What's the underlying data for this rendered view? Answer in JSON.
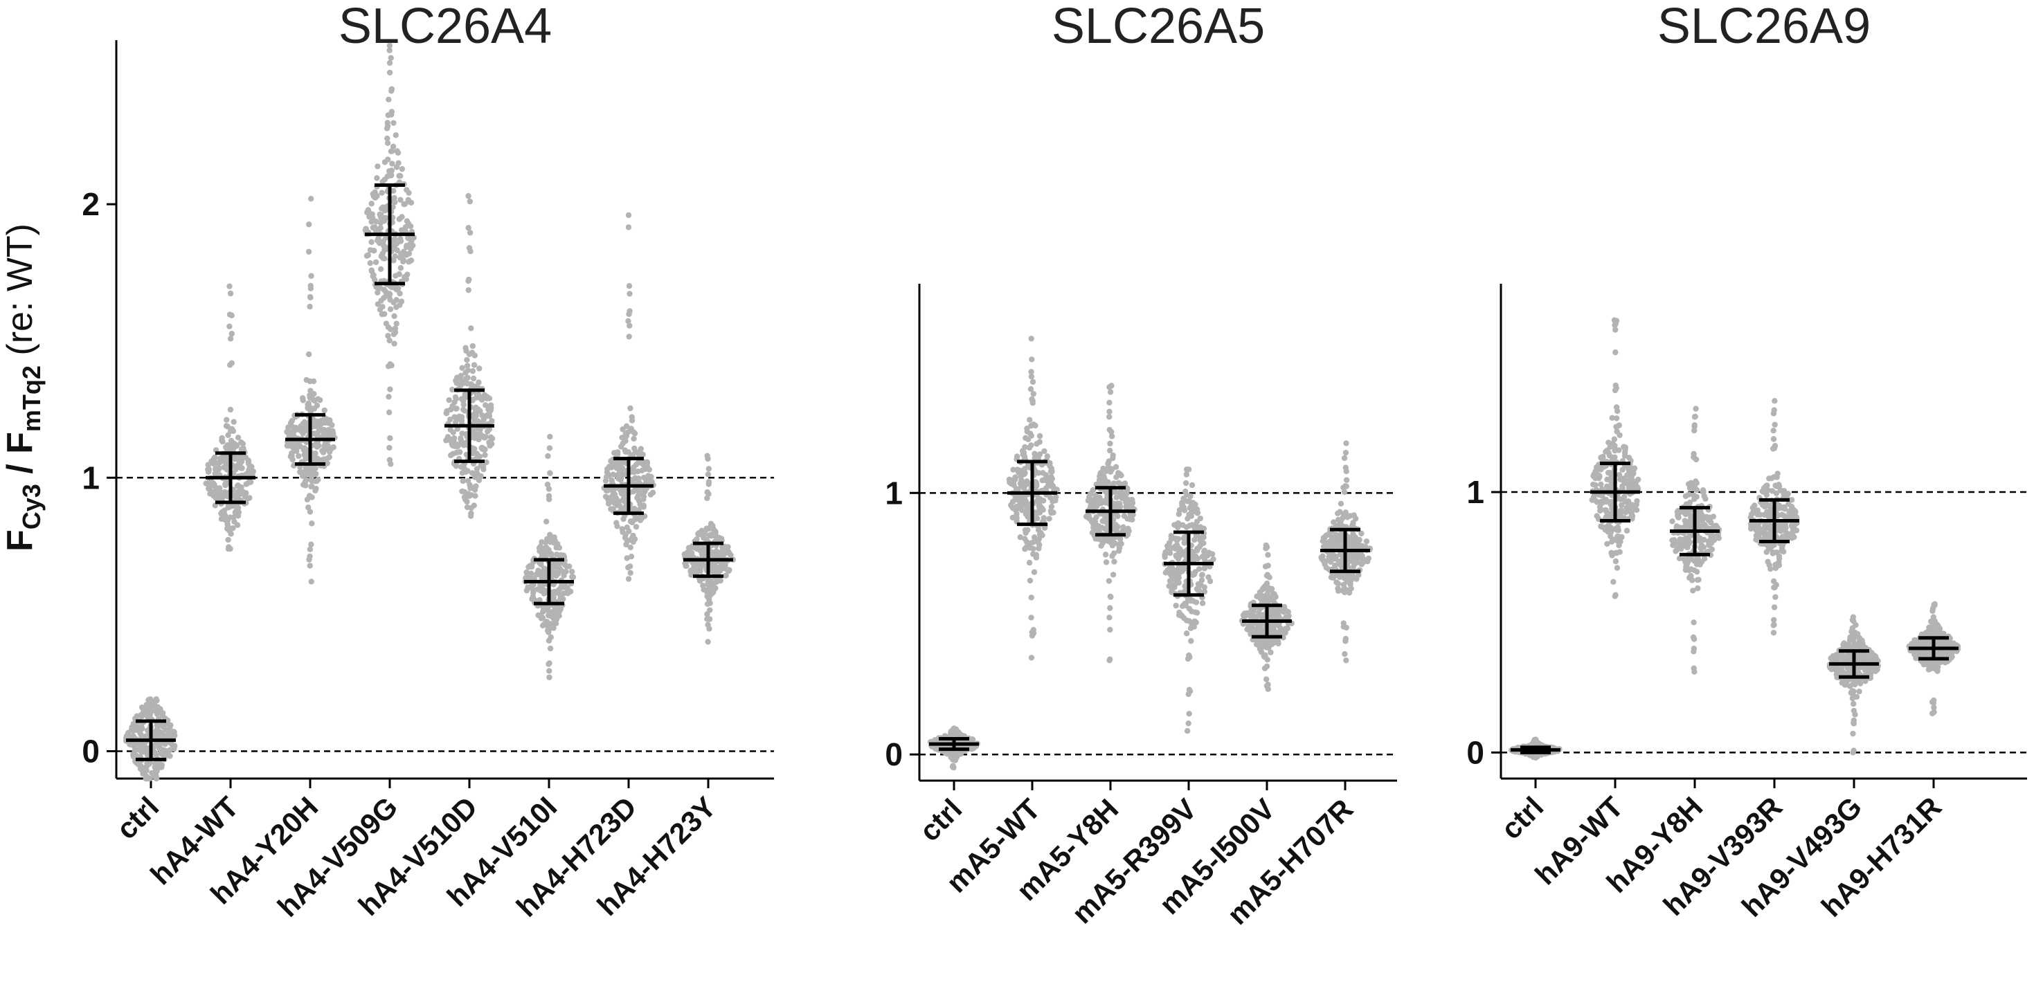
{
  "y_axis_label": {
    "main1": "F",
    "sub1": "Cy3",
    "sep": " / F",
    "sub2": "mTq2",
    "suffix": " (re: WT)"
  },
  "colors": {
    "points": "#b3b3b3",
    "error_bars": "#000000",
    "axes": "#000000",
    "reference_lines": "#000000"
  },
  "chart_data": [
    {
      "type": "scatter",
      "subtype": "beeswarm with mean ± SD",
      "title": "SLC26A4",
      "ylim": [
        -0.1,
        2.6
      ],
      "yticks": [
        0,
        1,
        2
      ],
      "reference_lines": [
        0,
        1
      ],
      "categories": [
        "ctrl",
        "hA4-WT",
        "hA4-Y20H",
        "hA4-V509G",
        "hA4-V510D",
        "hA4-V510I",
        "hA4-H723D",
        "hA4-H723Y"
      ],
      "mean": [
        0.04,
        1.0,
        1.14,
        1.89,
        1.19,
        0.62,
        0.97,
        0.7
      ],
      "sd": [
        0.07,
        0.09,
        0.09,
        0.18,
        0.13,
        0.08,
        0.1,
        0.06
      ],
      "max": [
        0.19,
        1.7,
        2.02,
        2.58,
        2.03,
        1.15,
        1.96,
        1.08
      ],
      "min": [
        -0.1,
        0.74,
        0.62,
        1.05,
        0.86,
        0.27,
        0.63,
        0.4
      ]
    },
    {
      "type": "scatter",
      "subtype": "beeswarm with mean ± SD",
      "title": "SLC26A5",
      "ylim": [
        -0.1,
        1.8
      ],
      "yticks": [
        0,
        1
      ],
      "reference_lines": [
        0,
        1
      ],
      "categories": [
        "ctrl",
        "mA5-WT",
        "mA5-Y8H",
        "mA5-R399V",
        "mA5-I500V",
        "mA5-H707R"
      ],
      "mean": [
        0.04,
        1.0,
        0.93,
        0.73,
        0.51,
        0.78
      ],
      "sd": [
        0.02,
        0.12,
        0.09,
        0.12,
        0.06,
        0.08
      ],
      "max": [
        0.1,
        1.59,
        1.41,
        1.09,
        0.8,
        1.19
      ],
      "min": [
        -0.05,
        0.37,
        0.36,
        0.09,
        0.25,
        0.36
      ]
    },
    {
      "type": "scatter",
      "subtype": "beeswarm with mean ± SD",
      "title": "SLC26A9",
      "ylim": [
        -0.1,
        1.8
      ],
      "yticks": [
        0,
        1
      ],
      "reference_lines": [
        0,
        1
      ],
      "categories": [
        "ctrl",
        "hA9-WT",
        "hA9-Y8H",
        "hA9-V393R",
        "hA9-V493G",
        "hA9-H731R"
      ],
      "mean": [
        0.01,
        1.0,
        0.85,
        0.89,
        0.34,
        0.4
      ],
      "sd": [
        0.01,
        0.11,
        0.09,
        0.08,
        0.05,
        0.04
      ],
      "max": [
        0.05,
        1.66,
        1.32,
        1.35,
        0.52,
        0.57
      ],
      "min": [
        -0.02,
        0.6,
        0.31,
        0.46,
        0.0,
        0.15
      ]
    }
  ]
}
